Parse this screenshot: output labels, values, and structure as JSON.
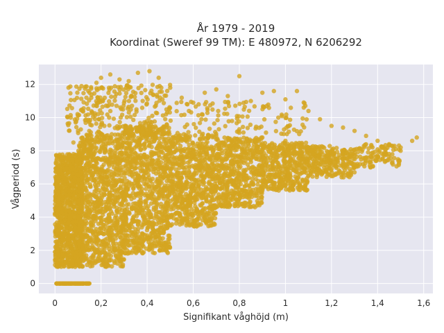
{
  "chart_data": {
    "type": "scatter",
    "title_line1": "År 1979 - 2019",
    "title_line2": "Koordinat (Sweref 99 TM): E 480972, N 6206292",
    "xlabel": "Signifikant våghöjd (m)",
    "ylabel": "Vågperiod (s)",
    "xlim": [
      -0.07,
      1.64
    ],
    "ylim": [
      -0.6,
      13.2
    ],
    "xticks": [
      0,
      0.2,
      0.4,
      0.6,
      0.8,
      1.0,
      1.2,
      1.4,
      1.6
    ],
    "xtick_labels": [
      "0",
      "0,2",
      "0,4",
      "0,6",
      "0,8",
      "1",
      "1,2",
      "1,4",
      "1,6"
    ],
    "yticks": [
      0,
      2,
      4,
      6,
      8,
      10,
      12
    ],
    "ytick_labels": [
      "0",
      "2",
      "4",
      "6",
      "8",
      "10",
      "12"
    ],
    "grid": true,
    "colors": {
      "marker": "#d4a520",
      "plot_bg": "#e6e6f0",
      "grid": "#ffffff"
    },
    "series": [
      {
        "values": [
          {
            "x": 0.01,
            "y": 0.0
          },
          {
            "x": 0.05,
            "y": 0.0
          },
          {
            "x": 0.1,
            "y": 0.0
          },
          {
            "x": 0.14,
            "y": 0.0
          },
          {
            "x": 0.01,
            "y": 1.2
          },
          {
            "x": 0.03,
            "y": 2.3
          },
          {
            "x": 0.05,
            "y": 1.6
          },
          {
            "x": 0.08,
            "y": 3.0
          },
          {
            "x": 0.1,
            "y": 1.4
          },
          {
            "x": 0.12,
            "y": 2.1
          },
          {
            "x": 0.15,
            "y": 1.3
          },
          {
            "x": 0.18,
            "y": 1.9
          },
          {
            "x": 0.22,
            "y": 1.6
          },
          {
            "x": 0.26,
            "y": 2.0
          },
          {
            "x": 0.3,
            "y": 2.2
          },
          {
            "x": 0.35,
            "y": 2.5
          },
          {
            "x": 0.4,
            "y": 2.9
          },
          {
            "x": 0.45,
            "y": 3.2
          },
          {
            "x": 0.5,
            "y": 3.5
          },
          {
            "x": 0.55,
            "y": 3.8
          },
          {
            "x": 0.6,
            "y": 4.1
          },
          {
            "x": 0.65,
            "y": 4.3
          },
          {
            "x": 0.7,
            "y": 4.6
          },
          {
            "x": 0.75,
            "y": 4.9
          },
          {
            "x": 0.8,
            "y": 5.1
          },
          {
            "x": 0.85,
            "y": 5.4
          },
          {
            "x": 0.9,
            "y": 5.6
          },
          {
            "x": 0.95,
            "y": 5.8
          },
          {
            "x": 1.0,
            "y": 6.1
          },
          {
            "x": 1.05,
            "y": 6.3
          },
          {
            "x": 1.1,
            "y": 6.5
          },
          {
            "x": 1.15,
            "y": 6.7
          },
          {
            "x": 1.2,
            "y": 6.9
          },
          {
            "x": 1.25,
            "y": 7.1
          },
          {
            "x": 1.3,
            "y": 7.2
          },
          {
            "x": 1.35,
            "y": 7.4
          },
          {
            "x": 1.4,
            "y": 7.6
          },
          {
            "x": 1.45,
            "y": 7.8
          },
          {
            "x": 1.5,
            "y": 8.0
          },
          {
            "x": 1.55,
            "y": 8.6
          },
          {
            "x": 1.57,
            "y": 8.8
          },
          {
            "x": 0.02,
            "y": 4.5
          },
          {
            "x": 0.04,
            "y": 6.0
          },
          {
            "x": 0.06,
            "y": 7.5
          },
          {
            "x": 0.08,
            "y": 8.5
          },
          {
            "x": 0.1,
            "y": 9.2
          },
          {
            "x": 0.12,
            "y": 10.4
          },
          {
            "x": 0.15,
            "y": 11.5
          },
          {
            "x": 0.18,
            "y": 12.1
          },
          {
            "x": 0.2,
            "y": 12.4
          },
          {
            "x": 0.24,
            "y": 12.6
          },
          {
            "x": 0.28,
            "y": 12.3
          },
          {
            "x": 0.32,
            "y": 12.2
          },
          {
            "x": 0.36,
            "y": 12.7
          },
          {
            "x": 0.41,
            "y": 12.8
          },
          {
            "x": 0.45,
            "y": 12.4
          },
          {
            "x": 0.5,
            "y": 11.8
          },
          {
            "x": 0.55,
            "y": 11.2
          },
          {
            "x": 0.6,
            "y": 10.9
          },
          {
            "x": 0.65,
            "y": 11.5
          },
          {
            "x": 0.7,
            "y": 11.7
          },
          {
            "x": 0.75,
            "y": 11.3
          },
          {
            "x": 0.8,
            "y": 12.5
          },
          {
            "x": 0.85,
            "y": 11.0
          },
          {
            "x": 0.9,
            "y": 11.5
          },
          {
            "x": 0.95,
            "y": 11.6
          },
          {
            "x": 1.0,
            "y": 11.1
          },
          {
            "x": 1.05,
            "y": 11.6
          },
          {
            "x": 1.1,
            "y": 10.4
          },
          {
            "x": 1.15,
            "y": 9.9
          },
          {
            "x": 1.2,
            "y": 9.5
          },
          {
            "x": 1.25,
            "y": 9.4
          },
          {
            "x": 1.3,
            "y": 9.2
          },
          {
            "x": 1.35,
            "y": 8.9
          },
          {
            "x": 1.4,
            "y": 8.6
          },
          {
            "x": 1.45,
            "y": 8.4
          },
          {
            "x": 1.5,
            "y": 8.2
          },
          {
            "x": 0.3,
            "y": 6.0
          },
          {
            "x": 0.4,
            "y": 7.0
          },
          {
            "x": 0.5,
            "y": 7.5
          },
          {
            "x": 0.6,
            "y": 8.0
          },
          {
            "x": 0.7,
            "y": 8.3
          },
          {
            "x": 0.8,
            "y": 8.6
          },
          {
            "x": 0.9,
            "y": 8.8
          },
          {
            "x": 1.0,
            "y": 8.6
          },
          {
            "x": 1.1,
            "y": 8.2
          },
          {
            "x": 1.2,
            "y": 7.9
          },
          {
            "x": 0.2,
            "y": 5.0
          },
          {
            "x": 0.25,
            "y": 3.5
          }
        ]
      }
    ],
    "clusters": [
      {
        "x_min": 0.005,
        "x_max": 0.15,
        "y_min": 0.0,
        "y_max": 0.0,
        "n": 110
      },
      {
        "x_min": 0.0,
        "x_max": 0.12,
        "y_min": 1.0,
        "y_max": 7.8,
        "n": 1100
      },
      {
        "x_min": 0.1,
        "x_max": 0.3,
        "y_min": 1.0,
        "y_max": 9.0,
        "n": 1000
      },
      {
        "x_min": 0.3,
        "x_max": 0.5,
        "y_min": 1.8,
        "y_max": 9.5,
        "n": 900
      },
      {
        "x_min": 0.5,
        "x_max": 0.7,
        "y_min": 3.4,
        "y_max": 9.0,
        "n": 700
      },
      {
        "x_min": 0.7,
        "x_max": 0.9,
        "y_min": 4.6,
        "y_max": 8.8,
        "n": 550
      },
      {
        "x_min": 0.9,
        "x_max": 1.1,
        "y_min": 5.6,
        "y_max": 8.5,
        "n": 420
      },
      {
        "x_min": 1.1,
        "x_max": 1.3,
        "y_min": 6.4,
        "y_max": 8.3,
        "n": 260
      },
      {
        "x_min": 1.3,
        "x_max": 1.5,
        "y_min": 7.0,
        "y_max": 8.4,
        "n": 110
      },
      {
        "x_min": 0.05,
        "x_max": 0.5,
        "y_min": 9.0,
        "y_max": 12.0,
        "n": 260
      },
      {
        "x_min": 0.5,
        "x_max": 1.1,
        "y_min": 9.0,
        "y_max": 11.0,
        "n": 120
      }
    ]
  }
}
